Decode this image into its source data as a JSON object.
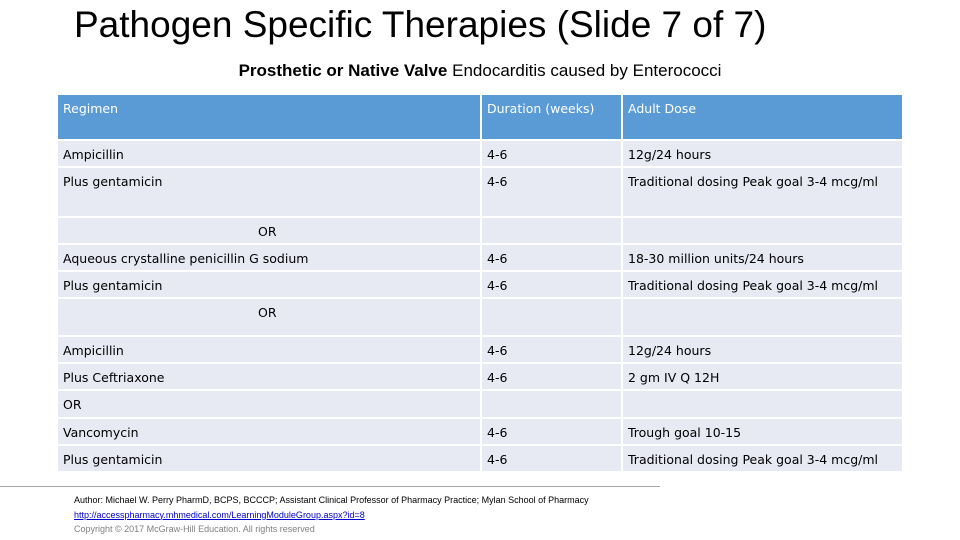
{
  "slide": {
    "title": "Pathogen Specific Therapies (Slide 7 of 7)",
    "subtitle_bold": "Prosthetic  or Native Valve",
    "subtitle_rest": " Endocarditis caused by Enterococci"
  },
  "table": {
    "headers": {
      "regimen": "Regimen",
      "duration": "Duration (weeks)",
      "dose": "Adult Dose"
    },
    "rows": [
      {
        "regimen": "Ampicillin",
        "duration": "4-6",
        "dose": "12g/24 hours"
      },
      {
        "regimen": "Plus gentamicin",
        "duration": "4-6",
        "dose": "Traditional dosing Peak goal 3-4 mcg/ml"
      },
      {
        "regimen": "Aqueous crystalline penicillin G sodium",
        "duration": "4-6",
        "dose": "18-30 million units/24 hours"
      },
      {
        "regimen": "Plus gentamicin",
        "duration": "4-6",
        "dose": "Traditional dosing Peak goal 3-4 mcg/ml"
      },
      {
        "regimen": "Ampicillin",
        "duration": "4-6",
        "dose": "12g/24 hours"
      },
      {
        "regimen": "Plus Ceftriaxone",
        "duration": "4-6",
        "dose": "2 gm IV Q 12H"
      },
      {
        "regimen": "Vancomycin",
        "duration": "4-6",
        "dose": "Trough goal 10-15"
      },
      {
        "regimen": "Plus gentamicin",
        "duration": "4-6",
        "dose": "Traditional dosing Peak goal 3-4 mcg/ml"
      }
    ],
    "separators": [
      "OR",
      "OR",
      "OR"
    ]
  },
  "footer": {
    "author": "Author: Michael W. Perry PharmD, BCPS, BCCCP; Assistant Clinical Professor of Pharmacy Practice; Mylan School of Pharmacy",
    "link": "http://accesspharmacy.mhmedical.com/LearningModuleGroup.aspx?id=8",
    "copyright": "Copyright © 2017 McGraw-Hill Education. All rights reserved"
  }
}
